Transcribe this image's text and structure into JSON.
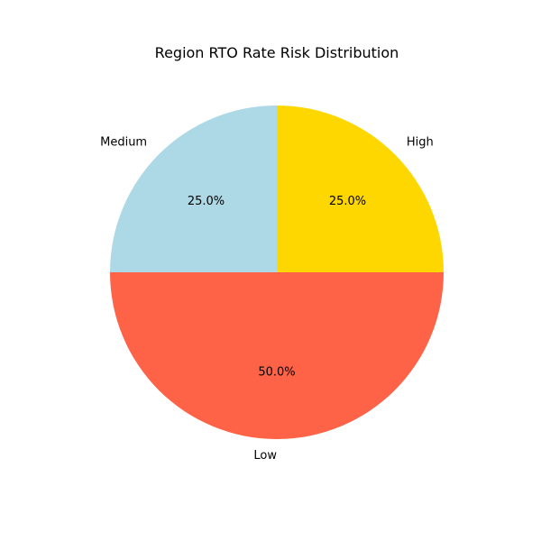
{
  "chart_data": {
    "type": "pie",
    "title": "Region RTO Rate Risk Distribution",
    "start_angle_deg": 90,
    "direction": "counterclockwise",
    "slices": [
      {
        "label": "Medium",
        "value": 25.0,
        "pct_label": "25.0%",
        "color": "#add8e6"
      },
      {
        "label": "Low",
        "value": 50.0,
        "pct_label": "50.0%",
        "color": "#ff6347"
      },
      {
        "label": "High",
        "value": 25.0,
        "pct_label": "25.0%",
        "color": "#ffd700"
      }
    ]
  }
}
